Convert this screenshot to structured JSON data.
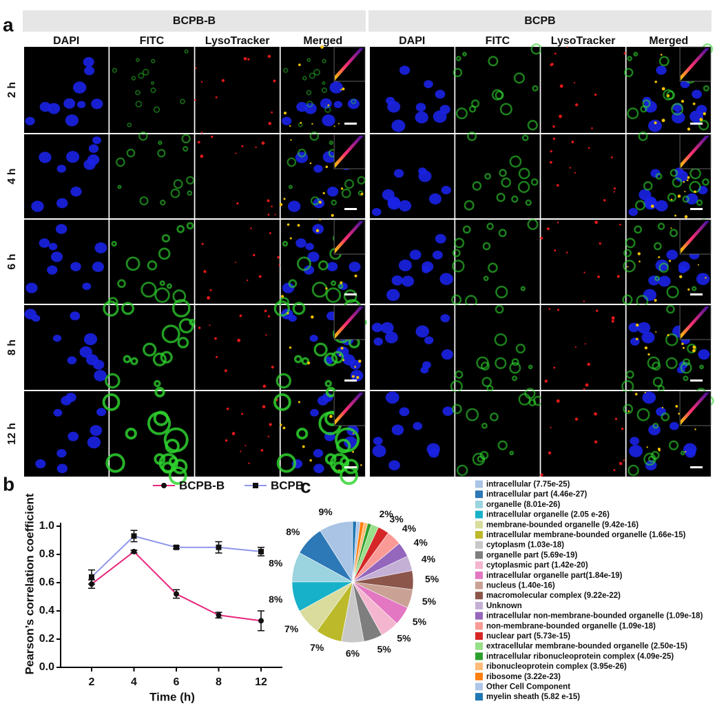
{
  "panel_a": {
    "label": "a",
    "groups": [
      {
        "title": "BCPB-B",
        "columns": [
          "DAPI",
          "FITC",
          "LysoTracker",
          "Merged"
        ]
      },
      {
        "title": "BCPB",
        "columns": [
          "DAPI",
          "FITC",
          "LysoTracker",
          "Merged"
        ]
      }
    ],
    "rows": [
      "2 h",
      "4 h",
      "6 h",
      "8 h",
      "12 h"
    ]
  },
  "chart_data": [
    {
      "type": "line",
      "label": "b",
      "xlabel": "Time (h)",
      "ylabel": "Pearson’s correlation coefficient",
      "categories": [
        "2",
        "4",
        "6",
        "8",
        "12"
      ],
      "series": [
        {
          "name": "BCPB-B",
          "color": "#e8267a",
          "marker": "circle",
          "values": [
            0.59,
            0.82,
            0.52,
            0.37,
            0.33
          ],
          "errors": [
            0.03,
            0.01,
            0.03,
            0.02,
            0.07
          ]
        },
        {
          "name": "BCPB",
          "color": "#8f95ec",
          "marker": "square",
          "values": [
            0.64,
            0.93,
            0.85,
            0.85,
            0.82
          ],
          "errors": [
            0.05,
            0.04,
            0.01,
            0.04,
            0.03
          ]
        }
      ],
      "ylim": [
        0,
        1.0
      ],
      "yticks": [
        {
          "value": 0,
          "label": "0.0"
        },
        0.2,
        0.4,
        0.6,
        0.8,
        {
          "value": 1.0,
          "label": "1.0"
        }
      ],
      "legend": "top"
    },
    {
      "type": "pie",
      "label": "c",
      "categories": [
        "intracellular (7.75e-25)",
        "intracellular part (4.46e-27)",
        "organelle (8.01e-26)",
        "intracellular organelle (2.05 e-26)",
        "membrane-bounded organelle (9.42e-16)",
        "intracellular membrane-bounded organelle (1.66e-15)",
        "cytoplasm (1.03e-18)",
        "organelle part (5.69e-19)",
        "cytoplasmic part (1.42e-20)",
        "intracellular organelle part(1.84e-19)",
        "nucleus (1.40e-16)",
        "macromolecular complex (9.22e-22)",
        "Unknown",
        "intracellular non-membrane-bounded organelle (1.09e-18)",
        "non-membrane-bounded organelle (1.09e-18)",
        "nuclear part (5.73e-15)",
        "extracellular membrane-bounded organelle (2.50e-15)",
        "intracellular ribonucleoprotein complex (4.09e-25)",
        "ribonucleoprotein complex (3.95e-26)",
        "ribosome (3.22e-23)",
        "Other Cell Component",
        "myelin sheath (5.82 e-15)"
      ],
      "values": [
        9,
        8,
        8,
        8,
        7,
        7,
        6,
        5,
        5,
        5,
        5,
        5,
        4,
        4,
        4,
        3,
        2,
        1,
        1,
        1,
        1,
        1
      ],
      "value_labels": [
        "9%",
        "8%",
        "8%",
        "8%",
        "7%",
        "7%",
        "6%",
        "5%",
        "5%",
        "5%",
        "5%",
        "5%",
        "4%",
        "4%",
        "4%",
        "3%",
        "2%",
        null,
        null,
        null,
        null,
        null
      ],
      "colors": [
        "#a9c4e4",
        "#2d78b6",
        "#9bd3df",
        "#17b1c9",
        "#d9dc9c",
        "#bcb92a",
        "#c8c8c8",
        "#7e7e7e",
        "#f4b6cf",
        "#e377c2",
        "#c9a295",
        "#8c564b",
        "#c5b0d5",
        "#9467bd",
        "#f99a96",
        "#d62728",
        "#98df8a",
        "#2ca02c",
        "#ffbb78",
        "#ff7f0e",
        "#aec7e8",
        "#1f77b4"
      ],
      "legend": "right"
    }
  ]
}
